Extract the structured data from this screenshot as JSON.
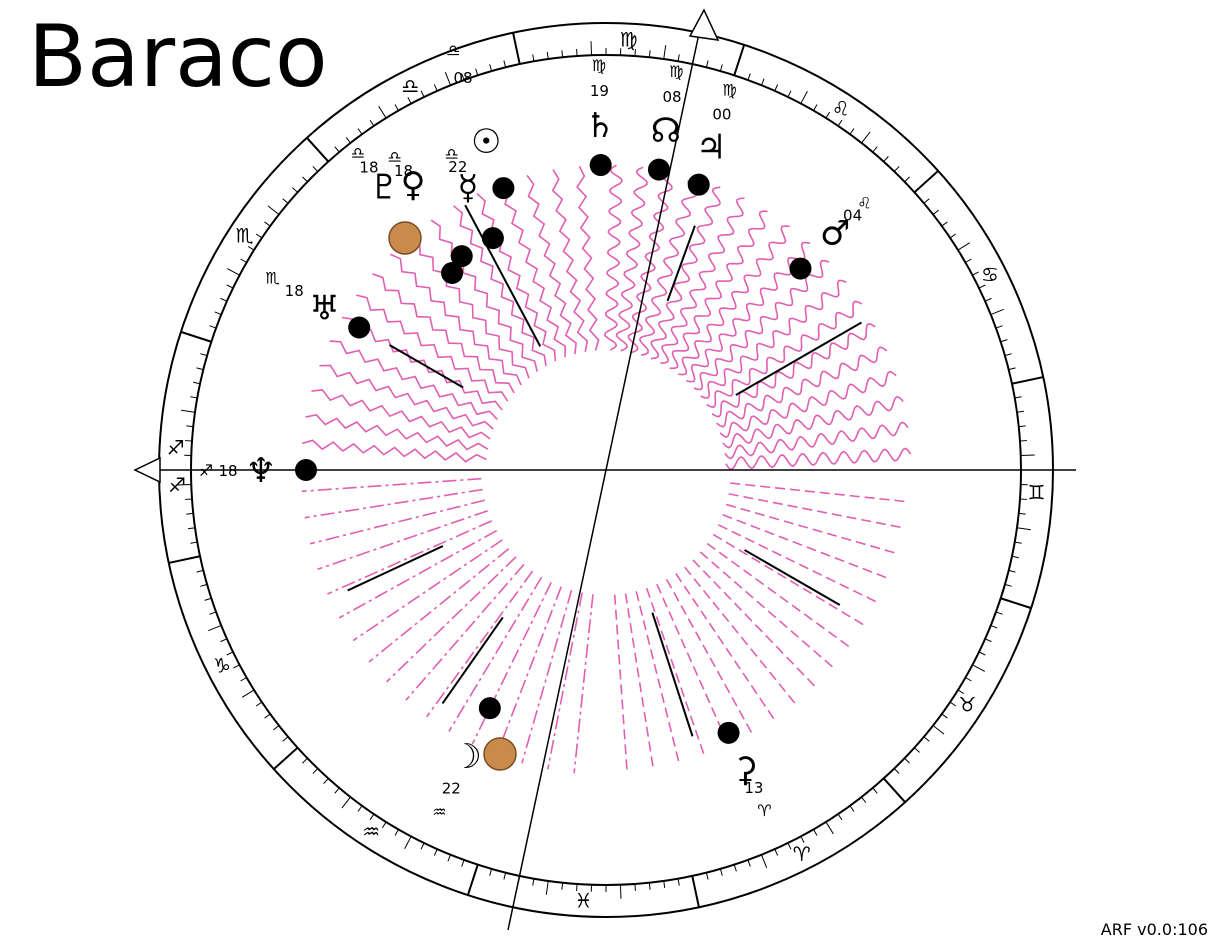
{
  "title": "Baraco",
  "version": "ARF v0.0:106",
  "angles": {
    "ascendant_sign_glyph": "♐",
    "asc_sign_index": 8,
    "asc_degree": 18
  },
  "zodiac": [
    {
      "name": "aries",
      "glyph": "♈"
    },
    {
      "name": "taurus",
      "glyph": "♉"
    },
    {
      "name": "gemini",
      "glyph": "♊"
    },
    {
      "name": "cancer",
      "glyph": "♋"
    },
    {
      "name": "leo",
      "glyph": "♌"
    },
    {
      "name": "virgo",
      "glyph": "♍"
    },
    {
      "name": "libra",
      "glyph": "♎"
    },
    {
      "name": "scorpio",
      "glyph": "♏"
    },
    {
      "name": "sagittarius",
      "glyph": "♐"
    },
    {
      "name": "capricorn",
      "glyph": "♑"
    },
    {
      "name": "aquarius",
      "glyph": "♒"
    },
    {
      "name": "pisces",
      "glyph": "♓"
    }
  ],
  "bodies": [
    {
      "name": "sun",
      "glyph": "☉",
      "sign_glyph": "♎",
      "degree": "08",
      "longitude": 188
    },
    {
      "name": "moon",
      "glyph": "☽",
      "sign_glyph": "♒",
      "degree": "22",
      "longitude": 322
    },
    {
      "name": "mercury",
      "glyph": "☿",
      "sign_glyph": "♎",
      "degree": "22",
      "longitude": 202
    },
    {
      "name": "venus",
      "glyph": "♀",
      "sign_glyph": "♎",
      "degree": "18",
      "longitude": 198
    },
    {
      "name": "pluto",
      "glyph": "♇",
      "sign_glyph": "♎",
      "degree": "18",
      "longitude": 198
    },
    {
      "name": "mars",
      "glyph": "♂",
      "sign_glyph": "♌",
      "degree": "04",
      "longitude": 124
    },
    {
      "name": "jupiter",
      "glyph": "♃",
      "sign_glyph": "♍",
      "degree": "00",
      "longitude": 150
    },
    {
      "name": "saturn",
      "glyph": "♄",
      "sign_glyph": "♍",
      "degree": "19",
      "longitude": 169
    },
    {
      "name": "node",
      "glyph": "☊",
      "sign_glyph": "♍",
      "degree": "08",
      "longitude": 158
    },
    {
      "name": "uranus",
      "glyph": "♅",
      "sign_glyph": "♏",
      "degree": "18",
      "longitude": 228
    },
    {
      "name": "neptune",
      "glyph": "♆",
      "sign_glyph": "♐",
      "degree": "18",
      "longitude": 258
    },
    {
      "name": "chiron",
      "glyph": "⚳",
      "sign_glyph": "♈",
      "degree": "13",
      "longitude": 13
    }
  ],
  "colors": {
    "wave": "#e05fb0",
    "ink": "#000000"
  }
}
